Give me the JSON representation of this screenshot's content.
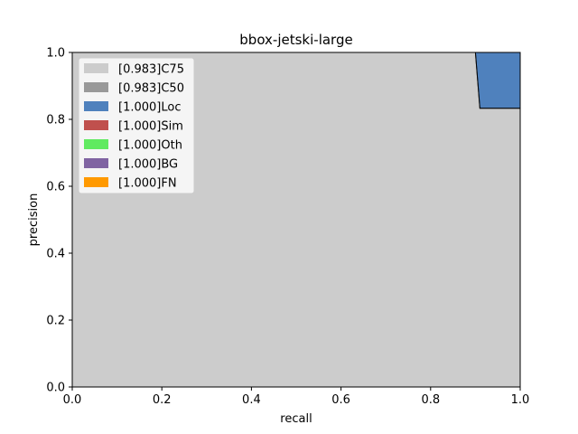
{
  "chart_data": {
    "type": "area",
    "title": "bbox-jetski-large",
    "xlabel": "recall",
    "ylabel": "precision",
    "xlim": [
      0,
      1
    ],
    "ylim": [
      0,
      1
    ],
    "x_ticks": [
      "0.0",
      "0.2",
      "0.4",
      "0.6",
      "0.8",
      "1.0"
    ],
    "y_ticks": [
      "0.0",
      "0.2",
      "0.4",
      "0.6",
      "0.8",
      "1.0"
    ],
    "grid": false,
    "legend_position": "top-left",
    "series": [
      {
        "name": "[0.983]C75",
        "color": "#cccccc",
        "x": [
          0,
          0.9,
          0.91,
          1.0
        ],
        "y": [
          1.0,
          1.0,
          0.833,
          0.833
        ]
      },
      {
        "name": "[0.983]C50",
        "color": "#999999",
        "x": [
          0,
          0.9,
          0.91,
          1.0
        ],
        "y": [
          1.0,
          1.0,
          0.833,
          0.833
        ]
      },
      {
        "name": "[1.000]Loc",
        "color": "#4f81bd",
        "x": [
          0,
          1.0
        ],
        "y": [
          1.0,
          1.0
        ]
      },
      {
        "name": "[1.000]Sim",
        "color": "#c0504d",
        "x": [
          0,
          1.0
        ],
        "y": [
          1.0,
          1.0
        ]
      },
      {
        "name": "[1.000]Oth",
        "color": "#60ea60",
        "x": [
          0,
          1.0
        ],
        "y": [
          1.0,
          1.0
        ]
      },
      {
        "name": "[1.000]BG",
        "color": "#8064a2",
        "x": [
          0,
          1.0
        ],
        "y": [
          1.0,
          1.0
        ]
      },
      {
        "name": "[1.000]FN",
        "color": "#ff9900",
        "x": [
          0,
          1.0
        ],
        "y": [
          1.0,
          1.0
        ]
      }
    ]
  }
}
